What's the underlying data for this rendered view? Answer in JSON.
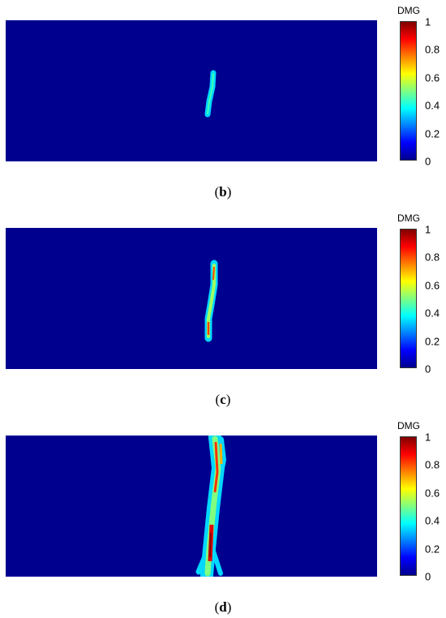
{
  "colorbar": {
    "title": "DMG",
    "ticks": [
      "1",
      "0.8",
      "0.6",
      "0.4",
      "0.2",
      "0"
    ],
    "colors": [
      "#800000",
      "#ff0000",
      "#ff8000",
      "#ffff00",
      "#80ff80",
      "#00ffff",
      "#0080ff",
      "#0000ff",
      "#00008f"
    ]
  },
  "panels": [
    {
      "letter": "b"
    },
    {
      "letter": "c"
    },
    {
      "letter": "d"
    }
  ]
}
